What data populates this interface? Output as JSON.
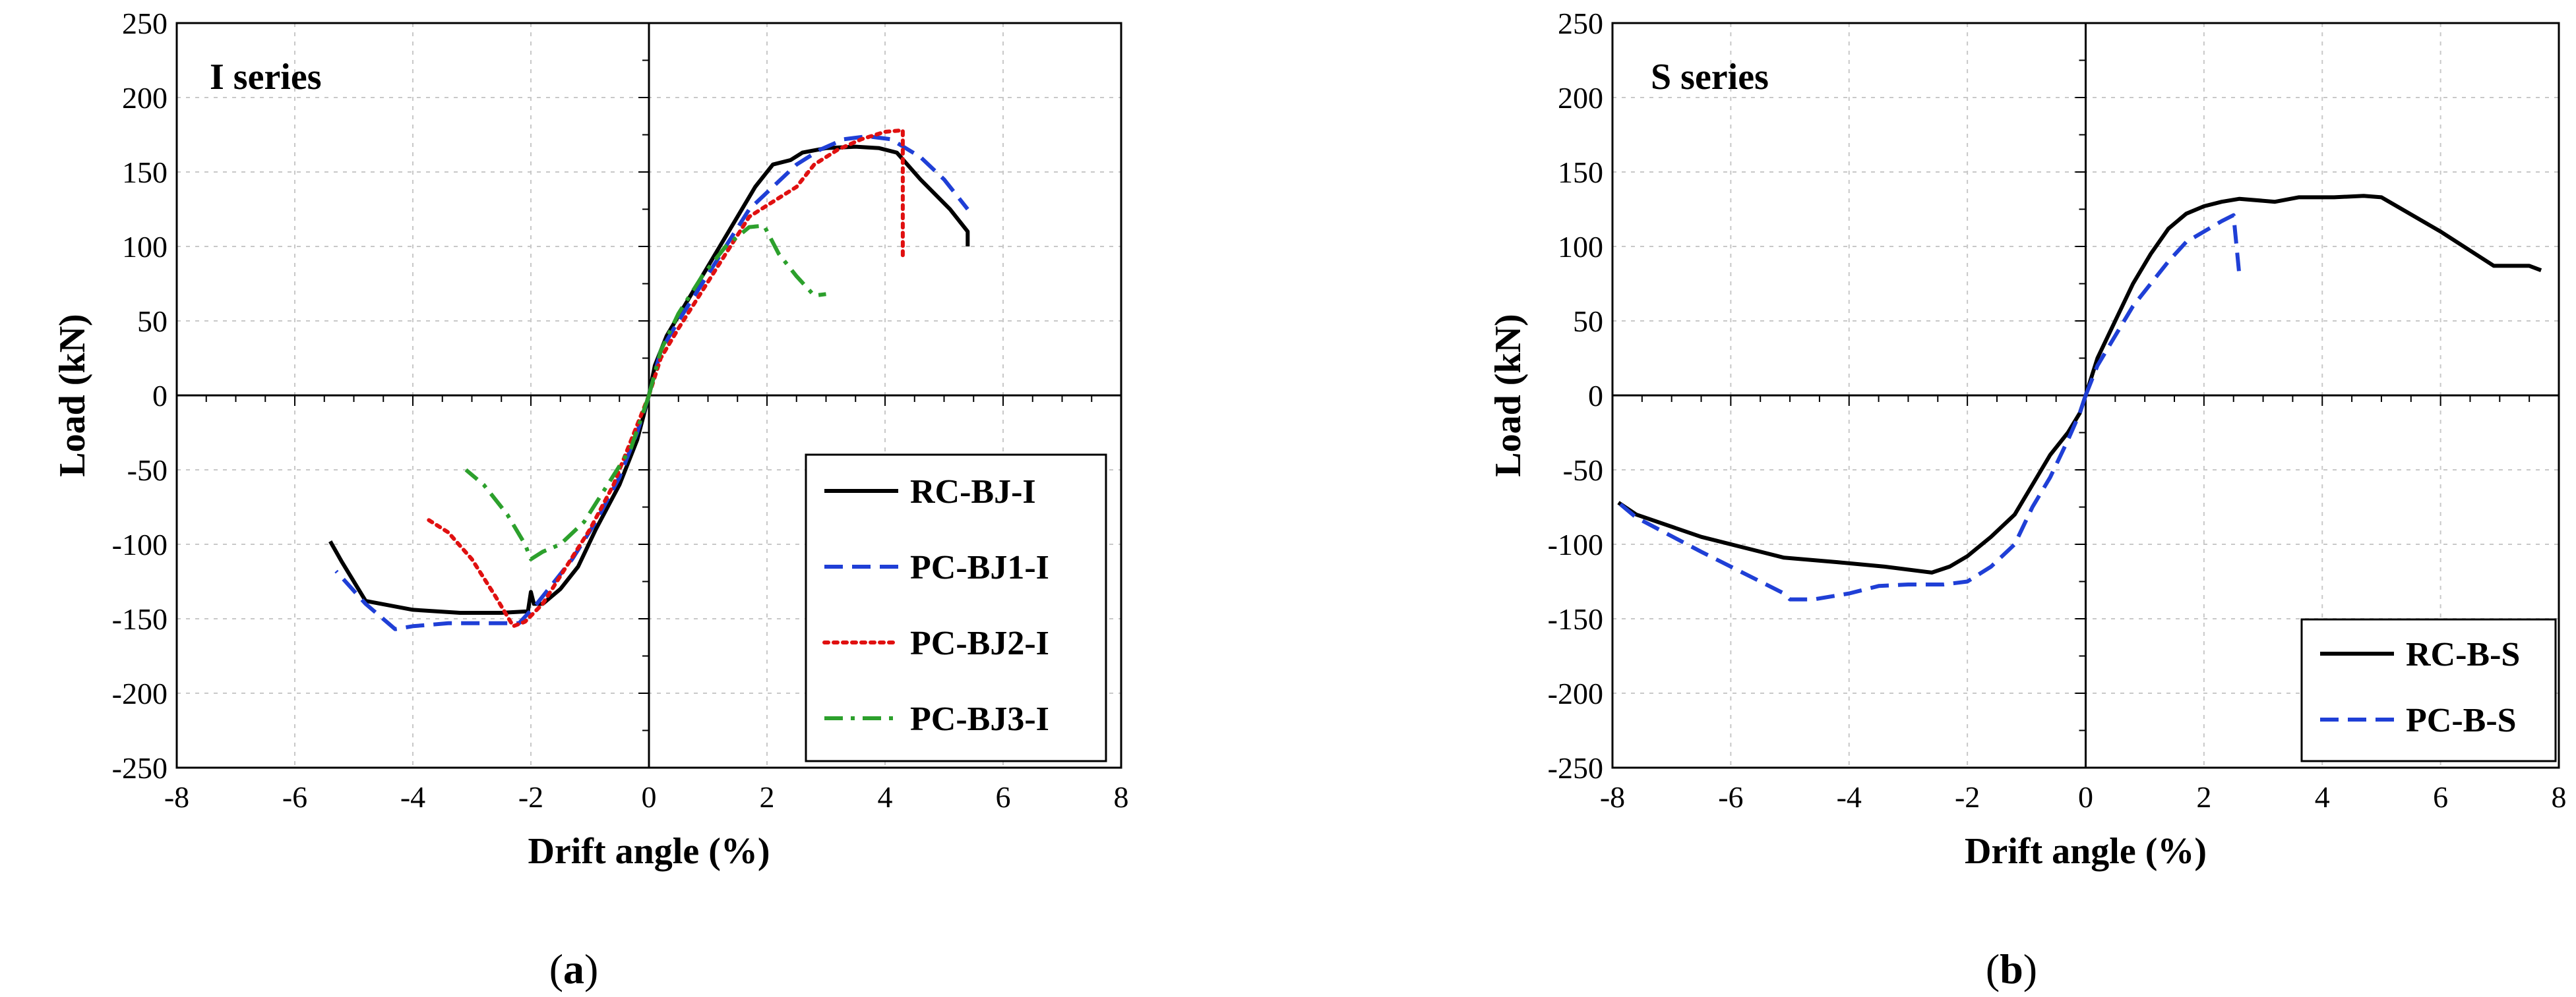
{
  "chart_data": [
    {
      "id": "a",
      "type": "line",
      "title": "I series",
      "caption_letter": "a",
      "xlabel": "Drift angle (%)",
      "ylabel": "Load (kN)",
      "xlim": [
        -8,
        8
      ],
      "ylim": [
        -250,
        250
      ],
      "xticks": [
        -8,
        -6,
        -4,
        -2,
        0,
        2,
        4,
        6,
        8
      ],
      "yticks": [
        250,
        200,
        150,
        100,
        50,
        0,
        -50,
        -100,
        -150,
        -200,
        -250
      ],
      "grid": true,
      "legend_position": "bottom-right",
      "series": [
        {
          "name": "RC-BJ-I",
          "color": "#000000",
          "dash": "solid",
          "points": [
            [
              0,
              0
            ],
            [
              0.1,
              20
            ],
            [
              0.3,
              40
            ],
            [
              0.6,
              60
            ],
            [
              0.9,
              80
            ],
            [
              1.2,
              100
            ],
            [
              1.5,
              120
            ],
            [
              1.8,
              140
            ],
            [
              2.1,
              155
            ],
            [
              2.4,
              158
            ],
            [
              2.6,
              163
            ],
            [
              3.0,
              166
            ],
            [
              3.5,
              167
            ],
            [
              3.9,
              166
            ],
            [
              4.2,
              163
            ],
            [
              4.6,
              145
            ],
            [
              5.1,
              125
            ],
            [
              5.4,
              110
            ],
            [
              5.4,
              100
            ],
            [
              0,
              0
            ],
            [
              -0.2,
              -30
            ],
            [
              -0.5,
              -60
            ],
            [
              -0.9,
              -90
            ],
            [
              -1.2,
              -115
            ],
            [
              -1.5,
              -130
            ],
            [
              -1.8,
              -140
            ],
            [
              -1.95,
              -140
            ],
            [
              -2.0,
              -132
            ],
            [
              -2.05,
              -145
            ],
            [
              -2.5,
              -146
            ],
            [
              -3.2,
              -146
            ],
            [
              -4.0,
              -144
            ],
            [
              -4.8,
              -138
            ],
            [
              -5.2,
              -112
            ],
            [
              -5.4,
              -98
            ]
          ]
        },
        {
          "name": "PC-BJ1-I",
          "color": "#1f3fd6",
          "dash": "dashed",
          "points": [
            [
              0,
              0
            ],
            [
              0.2,
              30
            ],
            [
              0.5,
              50
            ],
            [
              0.9,
              75
            ],
            [
              1.3,
              100
            ],
            [
              1.7,
              125
            ],
            [
              2.1,
              140
            ],
            [
              2.5,
              155
            ],
            [
              2.9,
              165
            ],
            [
              3.3,
              172
            ],
            [
              3.7,
              174
            ],
            [
              4.1,
              172
            ],
            [
              4.6,
              160
            ],
            [
              5.0,
              145
            ],
            [
              5.4,
              125
            ],
            [
              0,
              0
            ],
            [
              -0.2,
              -25
            ],
            [
              -0.5,
              -55
            ],
            [
              -0.9,
              -85
            ],
            [
              -1.3,
              -110
            ],
            [
              -1.6,
              -125
            ],
            [
              -1.9,
              -140
            ],
            [
              -2.2,
              -153
            ],
            [
              -2.8,
              -153
            ],
            [
              -3.4,
              -153
            ],
            [
              -4.0,
              -155
            ],
            [
              -4.3,
              -157
            ],
            [
              -4.8,
              -140
            ],
            [
              -5.3,
              -118
            ]
          ]
        },
        {
          "name": "PC-BJ2-I",
          "color": "#e01010",
          "dash": "dotted",
          "points": [
            [
              0,
              0
            ],
            [
              0.2,
              25
            ],
            [
              0.5,
              45
            ],
            [
              0.9,
              70
            ],
            [
              1.3,
              95
            ],
            [
              1.7,
              120
            ],
            [
              2.1,
              130
            ],
            [
              2.5,
              140
            ],
            [
              2.8,
              155
            ],
            [
              3.2,
              165
            ],
            [
              3.6,
              172
            ],
            [
              4.0,
              177
            ],
            [
              4.3,
              178
            ],
            [
              4.3,
              92
            ],
            [
              0,
              0
            ],
            [
              -0.3,
              -30
            ],
            [
              -0.6,
              -60
            ],
            [
              -1.0,
              -90
            ],
            [
              -1.4,
              -115
            ],
            [
              -1.8,
              -140
            ],
            [
              -2.1,
              -152
            ],
            [
              -2.3,
              -155
            ],
            [
              -2.6,
              -135
            ],
            [
              -3.0,
              -110
            ],
            [
              -3.4,
              -92
            ],
            [
              -3.8,
              -82
            ]
          ]
        },
        {
          "name": "PC-BJ3-I",
          "color": "#2ca02c",
          "dash": "dashdot",
          "points": [
            [
              0,
              0
            ],
            [
              0.2,
              30
            ],
            [
              0.5,
              55
            ],
            [
              0.9,
              80
            ],
            [
              1.3,
              100
            ],
            [
              1.7,
              113
            ],
            [
              1.95,
              114
            ],
            [
              2.2,
              95
            ],
            [
              2.5,
              80
            ],
            [
              2.8,
              67
            ],
            [
              3.0,
              68
            ],
            [
              0,
              0
            ],
            [
              -0.3,
              -35
            ],
            [
              -0.7,
              -60
            ],
            [
              -1.1,
              -85
            ],
            [
              -1.5,
              -100
            ],
            [
              -1.8,
              -105
            ],
            [
              -2.0,
              -110
            ],
            [
              -2.1,
              -100
            ],
            [
              -2.4,
              -80
            ],
            [
              -2.8,
              -60
            ],
            [
              -3.1,
              -50
            ]
          ]
        }
      ]
    },
    {
      "id": "b",
      "type": "line",
      "title": "S series",
      "caption_letter": "b",
      "xlabel": "Drift angle (%)",
      "ylabel": "Load (kN)",
      "xlim": [
        -8,
        8
      ],
      "ylim": [
        -250,
        250
      ],
      "xticks": [
        -8,
        -6,
        -4,
        -2,
        0,
        2,
        4,
        6,
        8
      ],
      "yticks": [
        250,
        200,
        150,
        100,
        50,
        0,
        -50,
        -100,
        -150,
        -200,
        -250
      ],
      "grid": true,
      "legend_position": "bottom-right",
      "series": [
        {
          "name": "RC-B-S",
          "color": "#000000",
          "dash": "solid",
          "points": [
            [
              0,
              0
            ],
            [
              0.2,
              25
            ],
            [
              0.5,
              50
            ],
            [
              0.8,
              75
            ],
            [
              1.1,
              95
            ],
            [
              1.4,
              112
            ],
            [
              1.7,
              122
            ],
            [
              2.0,
              127
            ],
            [
              2.3,
              130
            ],
            [
              2.6,
              132
            ],
            [
              3.2,
              130
            ],
            [
              3.6,
              133
            ],
            [
              4.2,
              133
            ],
            [
              4.7,
              134
            ],
            [
              5.0,
              133
            ],
            [
              6.0,
              110
            ],
            [
              6.9,
              87
            ],
            [
              7.5,
              87
            ],
            [
              7.7,
              84
            ],
            [
              0,
              0
            ],
            [
              -0.1,
              -12
            ],
            [
              -0.3,
              -25
            ],
            [
              -0.6,
              -40
            ],
            [
              -0.9,
              -60
            ],
            [
              -1.2,
              -80
            ],
            [
              -1.6,
              -95
            ],
            [
              -2.0,
              -108
            ],
            [
              -2.3,
              -115
            ],
            [
              -2.6,
              -119
            ],
            [
              -3.4,
              -115
            ],
            [
              -4.2,
              -112
            ],
            [
              -5.1,
              -109
            ],
            [
              -6.5,
              -95
            ],
            [
              -7.6,
              -80
            ],
            [
              -7.9,
              -72
            ]
          ]
        },
        {
          "name": "PC-B-S",
          "color": "#1f3fd6",
          "dash": "dashed",
          "points": [
            [
              0,
              0
            ],
            [
              0.2,
              20
            ],
            [
              0.5,
              40
            ],
            [
              0.8,
              60
            ],
            [
              1.1,
              75
            ],
            [
              1.4,
              90
            ],
            [
              1.7,
              103
            ],
            [
              2.0,
              110
            ],
            [
              2.3,
              117
            ],
            [
              2.5,
              121
            ],
            [
              2.6,
              80
            ],
            [
              0,
              0
            ],
            [
              -0.1,
              -12
            ],
            [
              -0.3,
              -30
            ],
            [
              -0.6,
              -55
            ],
            [
              -0.9,
              -75
            ],
            [
              -1.2,
              -100
            ],
            [
              -1.6,
              -115
            ],
            [
              -2.0,
              -125
            ],
            [
              -2.4,
              -127
            ],
            [
              -3.0,
              -127
            ],
            [
              -3.5,
              -128
            ],
            [
              -4.0,
              -133
            ],
            [
              -4.6,
              -137
            ],
            [
              -5.0,
              -137
            ],
            [
              -5.1,
              -133
            ],
            [
              -6.5,
              -105
            ],
            [
              -7.6,
              -82
            ],
            [
              -7.9,
              -72
            ]
          ]
        }
      ]
    }
  ]
}
